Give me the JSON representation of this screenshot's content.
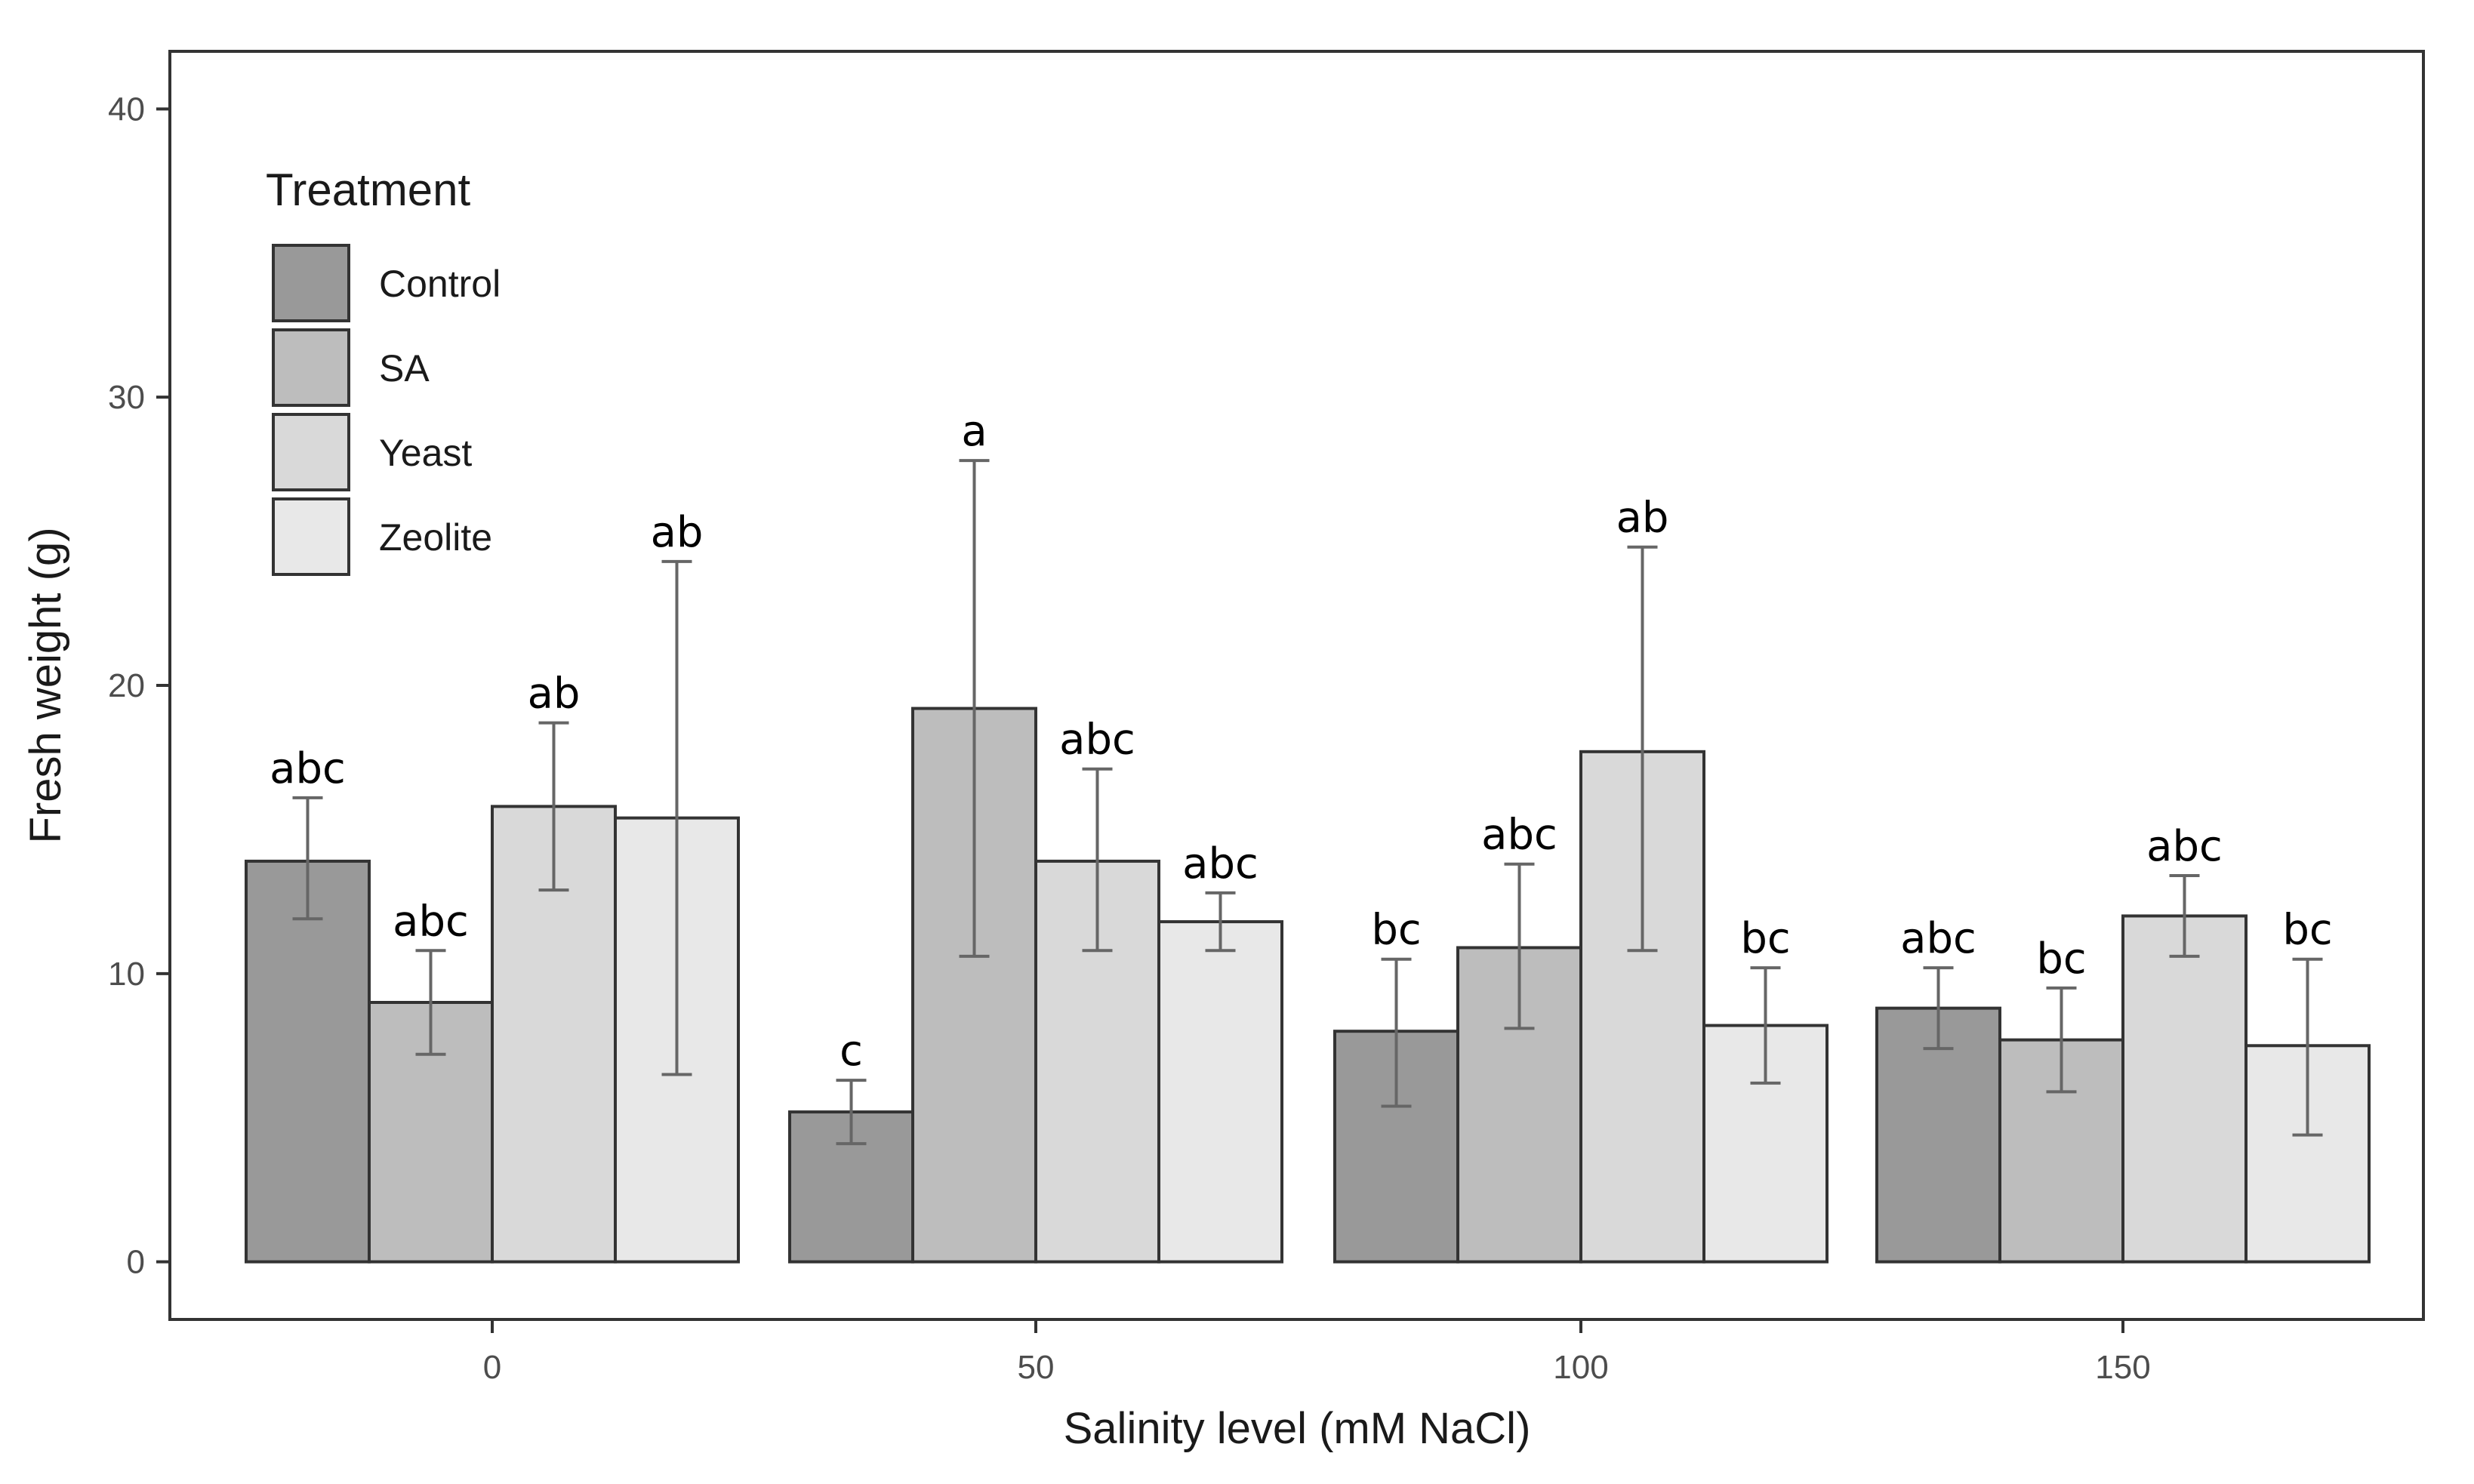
{
  "chart_data": {
    "type": "bar",
    "xlabel": "Salinity level (mM NaCl)",
    "ylabel": "Fresh weight (g)",
    "ylim": [
      -2,
      42
    ],
    "yticks": [
      0,
      10,
      20,
      30,
      40
    ],
    "categories": [
      "0",
      "50",
      "100",
      "150"
    ],
    "grid": false,
    "legend": {
      "title": "Treatment",
      "position": "top-left"
    },
    "series": [
      {
        "name": "Control",
        "color": "#999999",
        "values": [
          13.9,
          5.2,
          8.0,
          8.8
        ],
        "error_low": [
          11.9,
          4.1,
          5.4,
          7.4
        ],
        "error_high": [
          16.1,
          6.3,
          10.5,
          10.2
        ],
        "labels": [
          "abc",
          "c",
          "bc",
          "abc"
        ]
      },
      {
        "name": "SA",
        "color": "#bdbdbd",
        "values": [
          9.0,
          19.2,
          10.9,
          7.7
        ],
        "error_low": [
          7.2,
          10.6,
          8.1,
          5.9
        ],
        "error_high": [
          10.8,
          27.8,
          13.8,
          9.5
        ],
        "labels": [
          "abc",
          "a",
          "abc",
          "bc"
        ]
      },
      {
        "name": "Yeast",
        "color": "#d9d9d9",
        "values": [
          15.8,
          13.9,
          17.7,
          12.0
        ],
        "error_low": [
          12.9,
          10.8,
          10.8,
          10.6
        ],
        "error_high": [
          18.7,
          17.1,
          24.8,
          13.4
        ],
        "labels": [
          "ab",
          "abc",
          "ab",
          "abc"
        ]
      },
      {
        "name": "Zeolite",
        "color": "#e8e8e8",
        "values": [
          15.4,
          11.8,
          8.2,
          7.5
        ],
        "error_low": [
          6.5,
          10.8,
          6.2,
          4.4
        ],
        "error_high": [
          24.3,
          12.8,
          10.2,
          10.5
        ],
        "labels": [
          "ab",
          "abc",
          "bc",
          "bc"
        ]
      }
    ]
  }
}
